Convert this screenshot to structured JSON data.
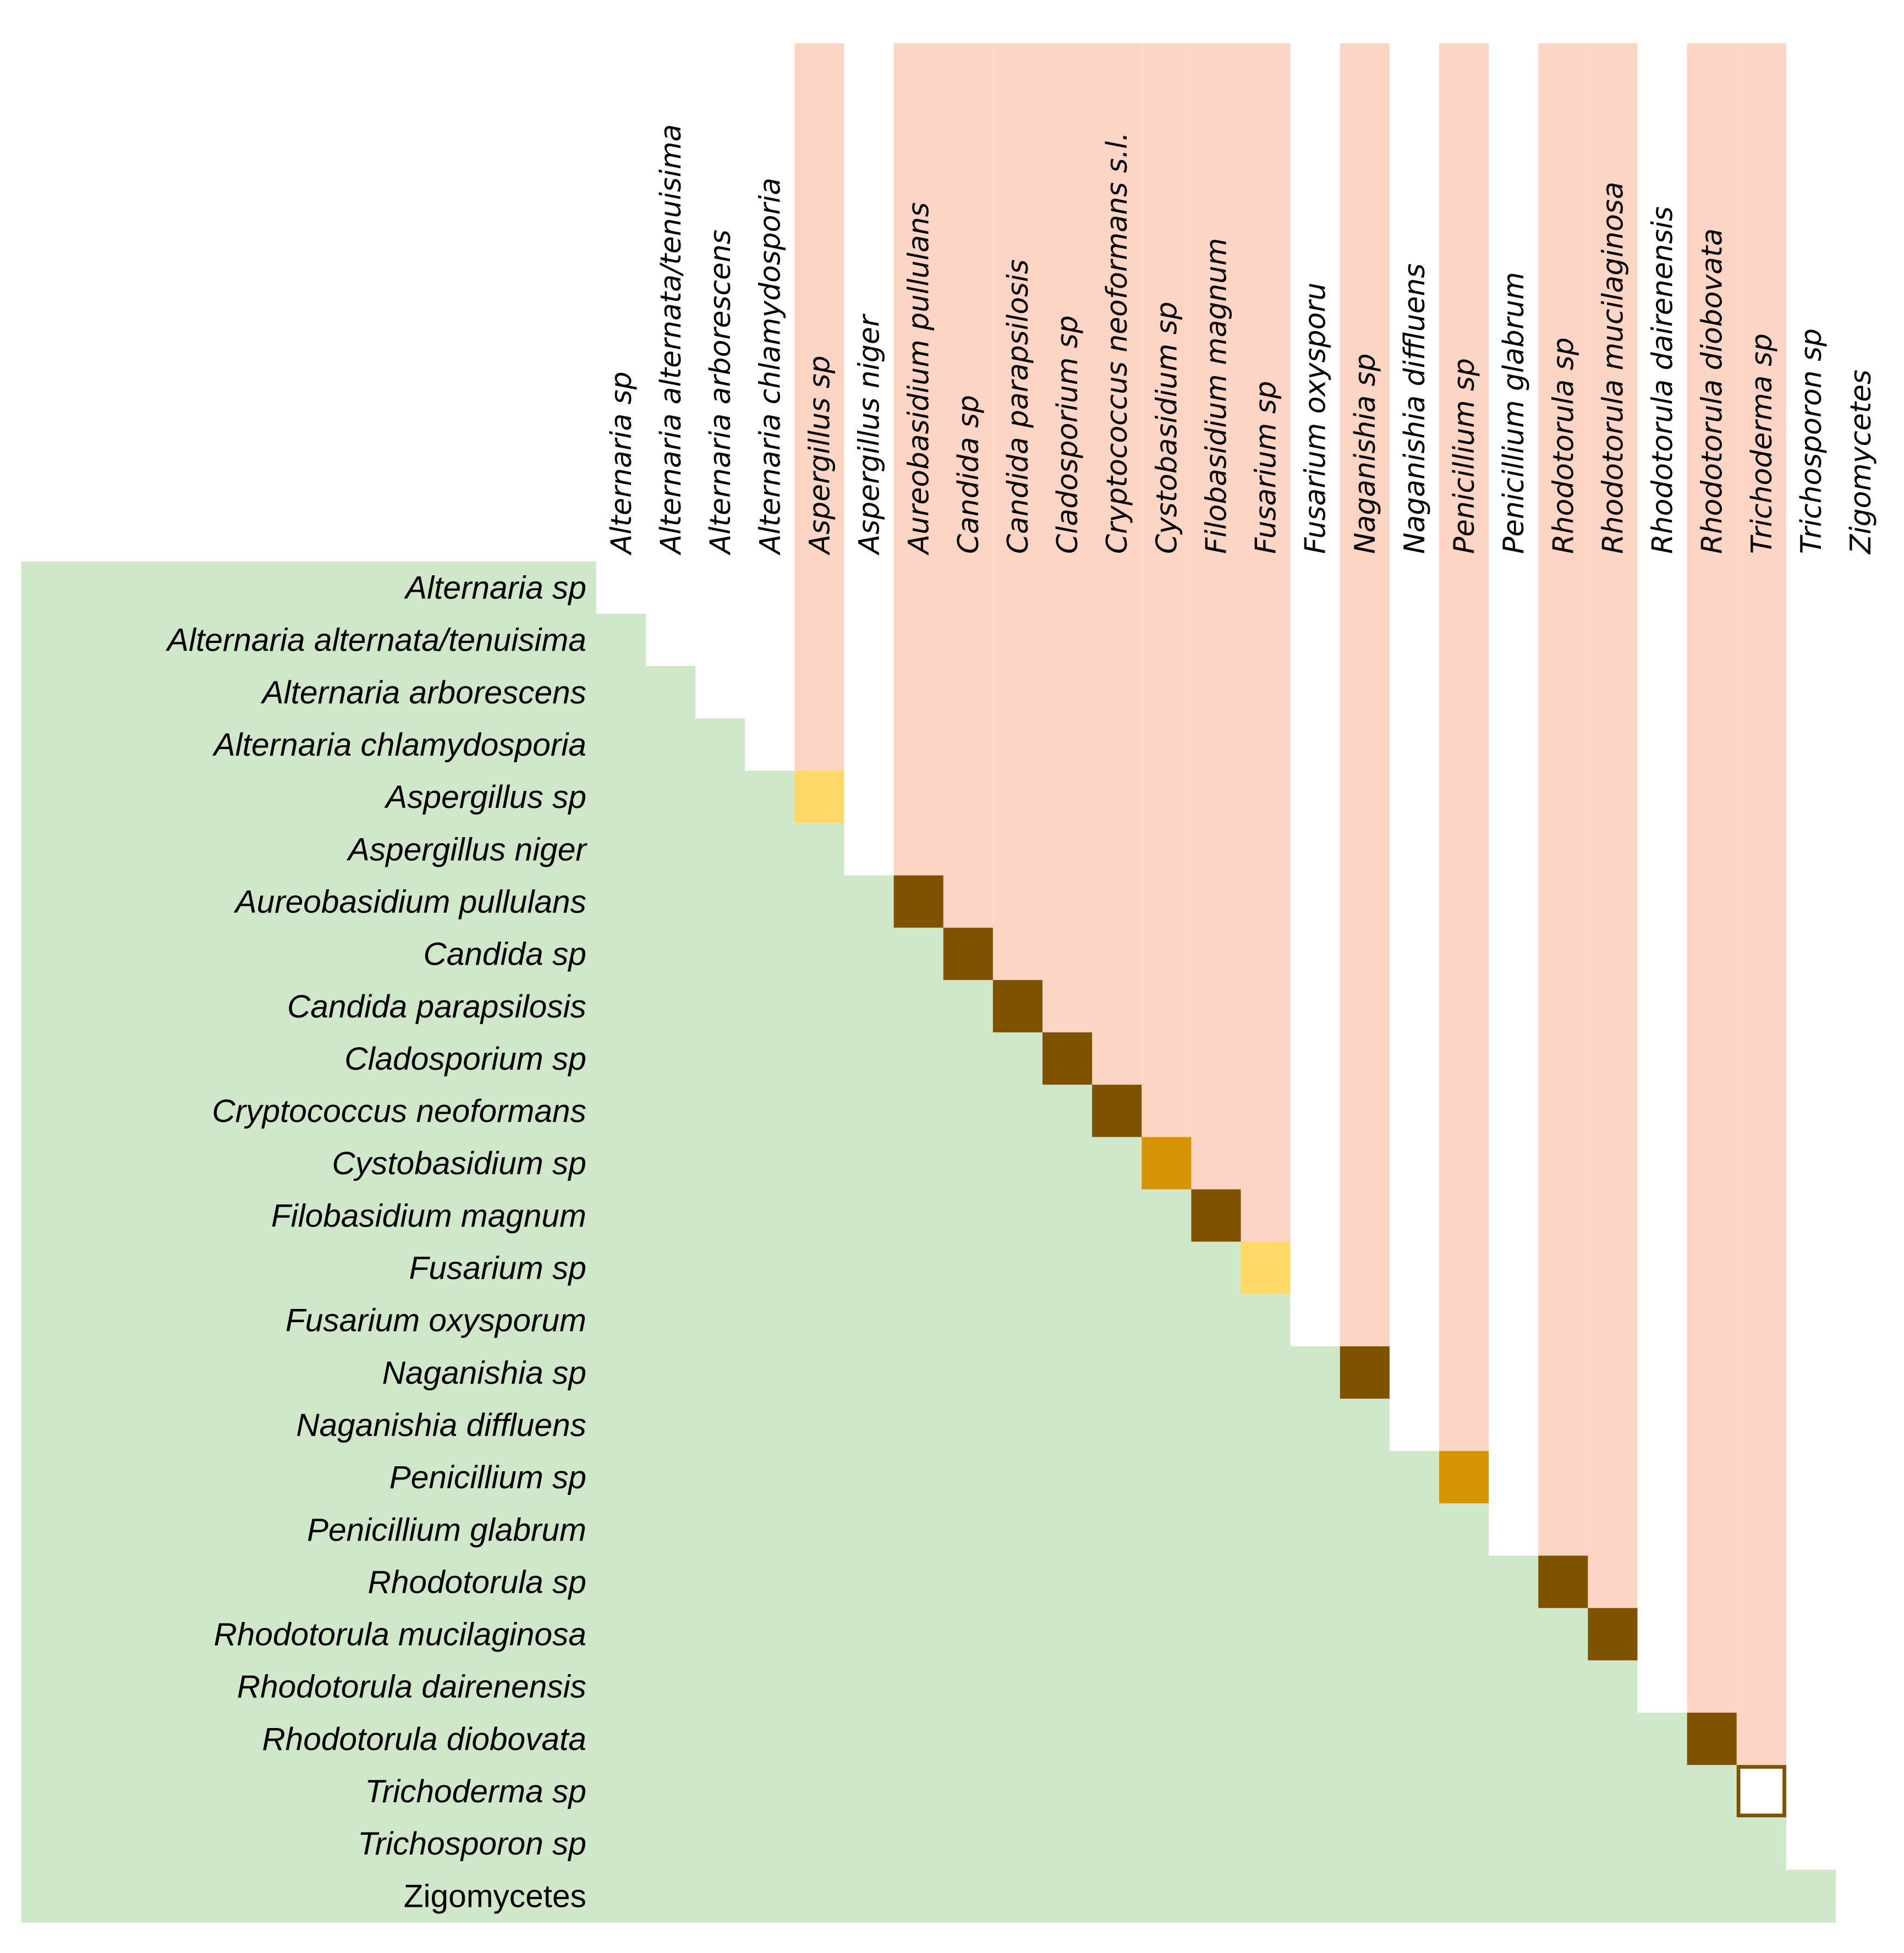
{
  "matrix": {
    "rows": [
      "Alternaria sp",
      "Alternaria alternata/tenuisima",
      "Alternaria arborescens",
      "Alternaria chlamydosporia",
      "Aspergillus sp",
      "Aspergillus niger",
      "Aureobasidium pullulans",
      "Candida sp",
      "Candida parapsilosis",
      "Cladosporium sp",
      "Cryptococcus neoformans",
      "Cystobasidium sp",
      "Filobasidium magnum",
      "Fusarium sp",
      "Fusarium oxysporum",
      "Naganishia sp",
      "Naganishia diffluens",
      "Penicillium sp",
      "Penicillium glabrum",
      "Rhodotorula sp",
      "Rhodotorula mucilaginosa",
      "Rhodotorula dairenensis",
      "Rhodotorula diobovata",
      "Trichoderma sp",
      "Trichosporon sp",
      "Zigomycetes"
    ],
    "columns": [
      "Alternaria sp",
      "Alternaria alternata/tenuisima",
      "Alternaria arborescens",
      "Alternaria chlamydosporia",
      "Aspergillus sp",
      "Aspergillus niger",
      "Aureobasidium pullulans",
      "Candida sp",
      "Candida parapsilosis",
      "Cladosporium sp",
      "Cryptococcus neoformans s.l.",
      "Cystobasidium sp",
      "Filobasidium magnum",
      "Fusarium sp",
      "Fusarium oxysporu",
      "Naganishia sp",
      "Naganishia diffluens",
      "Penicillium sp",
      "Penicillium glabrum",
      "Rhodotorula sp",
      "Rhodotorula mucilaginosa",
      "Rhodotorula dairenensis",
      "Rhodotorula diobovata",
      "Trichoderma sp",
      "Trichosporon sp",
      "Zigomycetes"
    ],
    "row_italic": [
      true,
      true,
      true,
      true,
      true,
      true,
      true,
      true,
      true,
      true,
      true,
      true,
      true,
      true,
      true,
      true,
      true,
      true,
      true,
      true,
      true,
      true,
      true,
      true,
      true,
      false
    ],
    "column_highlight": [
      false,
      false,
      false,
      false,
      true,
      false,
      true,
      true,
      true,
      true,
      true,
      true,
      true,
      true,
      false,
      true,
      false,
      true,
      false,
      true,
      true,
      false,
      true,
      true,
      false,
      false
    ],
    "diagonal": [
      null,
      null,
      null,
      null,
      "#FFD966",
      null,
      "#7F5200",
      "#7F5200",
      "#7F5200",
      "#7F5200",
      "#7F5200",
      "#D49500",
      "#7F5200",
      "#FFD966",
      null,
      "#7F5200",
      null,
      "#D49500",
      null,
      "#7F5200",
      "#7F5200",
      null,
      "#7F5200",
      {
        "fill": "#FFFFFF",
        "stroke": "#7F5200"
      },
      null,
      null
    ],
    "row_band_color": "#D0E8C9",
    "column_highlight_color": "#FCD5C4"
  }
}
